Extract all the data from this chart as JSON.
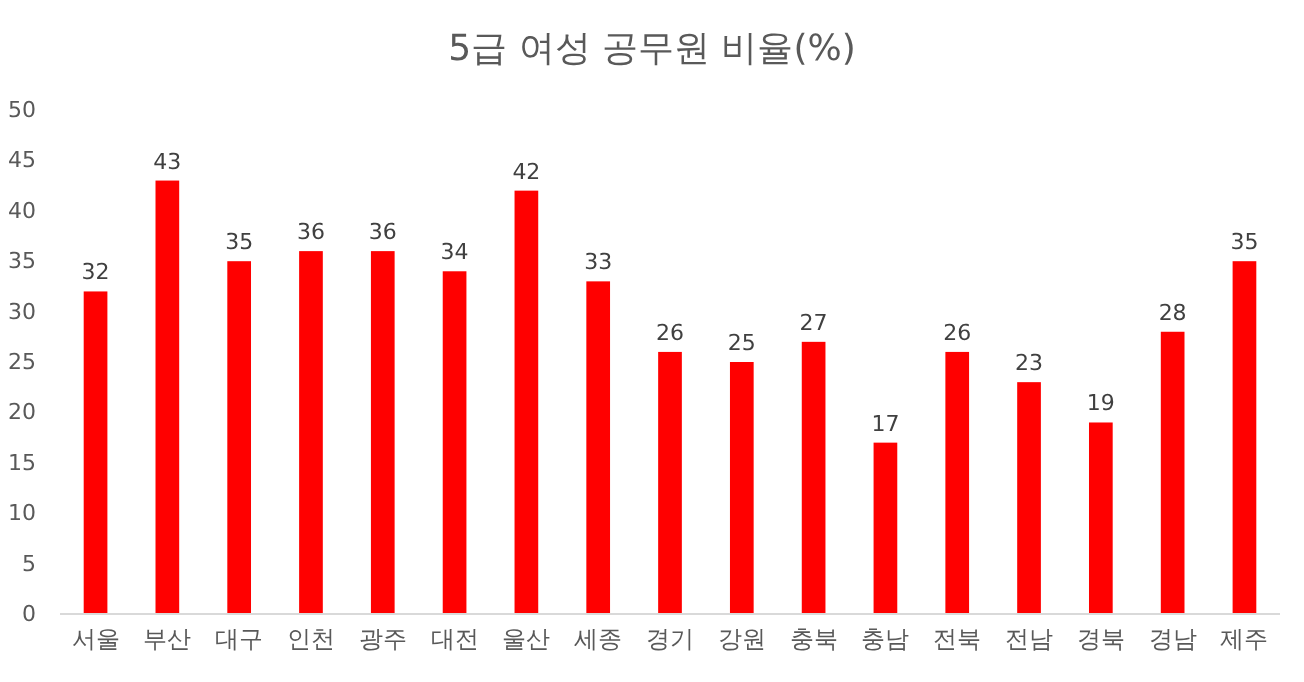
{
  "chart_data": {
    "type": "bar",
    "title": "5급 여성 공무원 비율(%)",
    "categories": [
      "서울",
      "부산",
      "대구",
      "인천",
      "광주",
      "대전",
      "울산",
      "세종",
      "경기",
      "강원",
      "충북",
      "충남",
      "전북",
      "전남",
      "경북",
      "경남",
      "제주"
    ],
    "values": [
      32,
      43,
      35,
      36,
      36,
      34,
      42,
      33,
      26,
      25,
      27,
      17,
      26,
      23,
      19,
      28,
      35
    ],
    "color": "#ff0000",
    "ylim": [
      0,
      50
    ],
    "yticks": [
      0,
      5,
      10,
      15,
      20,
      25,
      30,
      35,
      40,
      45,
      50
    ],
    "data_labels": true
  }
}
